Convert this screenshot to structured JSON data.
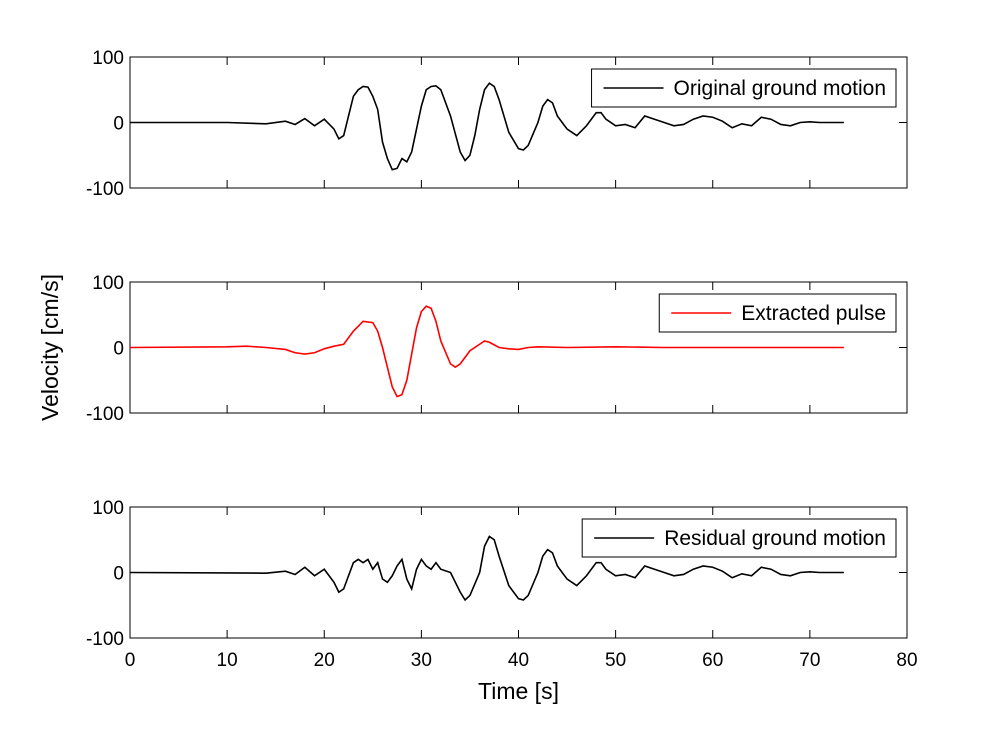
{
  "chart_data": [
    {
      "type": "line",
      "x": [
        0,
        10,
        14,
        16,
        17,
        18,
        19,
        20,
        21,
        21.5,
        22,
        22.5,
        23,
        23.5,
        24,
        24.5,
        25,
        25.5,
        26,
        26.5,
        27,
        27.5,
        28,
        28.5,
        29,
        29.5,
        30,
        30.5,
        31,
        31.5,
        32,
        33,
        34,
        34.5,
        35,
        35.5,
        36,
        36.5,
        37,
        37.5,
        38,
        39,
        40,
        40.5,
        41,
        42,
        42.5,
        43,
        43.5,
        44,
        45,
        46,
        47,
        48,
        48.5,
        49,
        50,
        51,
        52,
        53,
        54,
        55,
        56,
        57,
        58,
        59,
        60,
        61,
        62,
        63,
        64,
        65,
        66,
        67,
        68,
        69,
        70,
        71,
        73.5
      ],
      "series": [
        {
          "name": "Original ground motion",
          "color": "#000000",
          "values": [
            0,
            0,
            -2,
            2,
            -3,
            6,
            -5,
            5,
            -10,
            -25,
            -20,
            10,
            40,
            50,
            55,
            54,
            40,
            20,
            -30,
            -55,
            -72,
            -70,
            -55,
            -60,
            -45,
            -10,
            25,
            50,
            55,
            56,
            50,
            10,
            -45,
            -58,
            -50,
            -20,
            20,
            50,
            60,
            55,
            35,
            -15,
            -40,
            -42,
            -35,
            0,
            25,
            35,
            30,
            10,
            -10,
            -20,
            -5,
            15,
            15,
            5,
            -5,
            -3,
            -8,
            10,
            5,
            0,
            -5,
            -3,
            5,
            10,
            8,
            2,
            -8,
            -2,
            -5,
            8,
            5,
            -3,
            -5,
            0,
            1,
            0,
            0
          ]
        }
      ],
      "xlim": [
        0,
        80
      ],
      "xticks": [
        0,
        10,
        20,
        30,
        40,
        50,
        60,
        70,
        80
      ],
      "xtick_labels": false,
      "ylim": [
        -100,
        100
      ],
      "yticks": [
        -100,
        0,
        100
      ],
      "legend": "upper right"
    },
    {
      "type": "line",
      "x": [
        0,
        10,
        12,
        14,
        16,
        17,
        18,
        19,
        20,
        21,
        22,
        23,
        24,
        25,
        25.5,
        26,
        26.5,
        27,
        27.5,
        28,
        28.5,
        29,
        29.5,
        30,
        30.5,
        31,
        31.5,
        32,
        33,
        33.5,
        34,
        35,
        36,
        36.5,
        37,
        38,
        39,
        40,
        41,
        42,
        45,
        50,
        55,
        73.5
      ],
      "series": [
        {
          "name": "Extracted pulse",
          "color": "#ff0000",
          "values": [
            0,
            1,
            2,
            0,
            -3,
            -8,
            -10,
            -8,
            -2,
            2,
            5,
            25,
            40,
            38,
            25,
            0,
            -30,
            -60,
            -75,
            -72,
            -50,
            -10,
            30,
            55,
            63,
            60,
            40,
            10,
            -25,
            -30,
            -25,
            -5,
            5,
            10,
            8,
            0,
            -2,
            -3,
            0,
            1,
            0,
            1,
            0,
            0
          ]
        }
      ],
      "ylabel": "Velocity [cm/s]",
      "xlim": [
        0,
        80
      ],
      "xticks": [
        0,
        10,
        20,
        30,
        40,
        50,
        60,
        70,
        80
      ],
      "xtick_labels": false,
      "ylim": [
        -100,
        100
      ],
      "yticks": [
        -100,
        0,
        100
      ],
      "legend": "upper right"
    },
    {
      "type": "line",
      "x": [
        0,
        14,
        16,
        17,
        18,
        19,
        20,
        21,
        21.5,
        22,
        22.5,
        23,
        23.5,
        24,
        24.5,
        25,
        25.5,
        26,
        26.5,
        27,
        27.5,
        28,
        28.5,
        29,
        29.5,
        30,
        30.5,
        31,
        31.5,
        32,
        33,
        34,
        34.5,
        35,
        36,
        36.5,
        37,
        37.5,
        38,
        39,
        40,
        40.5,
        41,
        42,
        42.5,
        43,
        43.5,
        44,
        45,
        46,
        47,
        48,
        48.5,
        49,
        50,
        51,
        52,
        53,
        54,
        55,
        56,
        57,
        58,
        59,
        60,
        61,
        62,
        63,
        64,
        65,
        66,
        67,
        68,
        69,
        70,
        71,
        73.5
      ],
      "series": [
        {
          "name": "Residual ground motion",
          "color": "#000000",
          "values": [
            0,
            -1,
            2,
            -3,
            8,
            -5,
            5,
            -15,
            -30,
            -25,
            -5,
            15,
            20,
            15,
            20,
            5,
            15,
            -10,
            -15,
            -5,
            10,
            20,
            -10,
            -25,
            5,
            20,
            10,
            5,
            15,
            5,
            0,
            -30,
            -42,
            -35,
            0,
            40,
            55,
            50,
            25,
            -20,
            -40,
            -42,
            -35,
            0,
            25,
            35,
            30,
            10,
            -10,
            -20,
            -5,
            15,
            15,
            5,
            -5,
            -3,
            -8,
            10,
            5,
            0,
            -5,
            -3,
            5,
            10,
            8,
            2,
            -8,
            -2,
            -5,
            8,
            5,
            -3,
            -5,
            0,
            1,
            0,
            0
          ]
        }
      ],
      "xlabel": "Time [s]",
      "xlim": [
        0,
        80
      ],
      "xticks": [
        0,
        10,
        20,
        30,
        40,
        50,
        60,
        70,
        80
      ],
      "xtick_labels": true,
      "ylim": [
        -100,
        100
      ],
      "yticks": [
        -100,
        0,
        100
      ],
      "legend": "upper right"
    }
  ]
}
